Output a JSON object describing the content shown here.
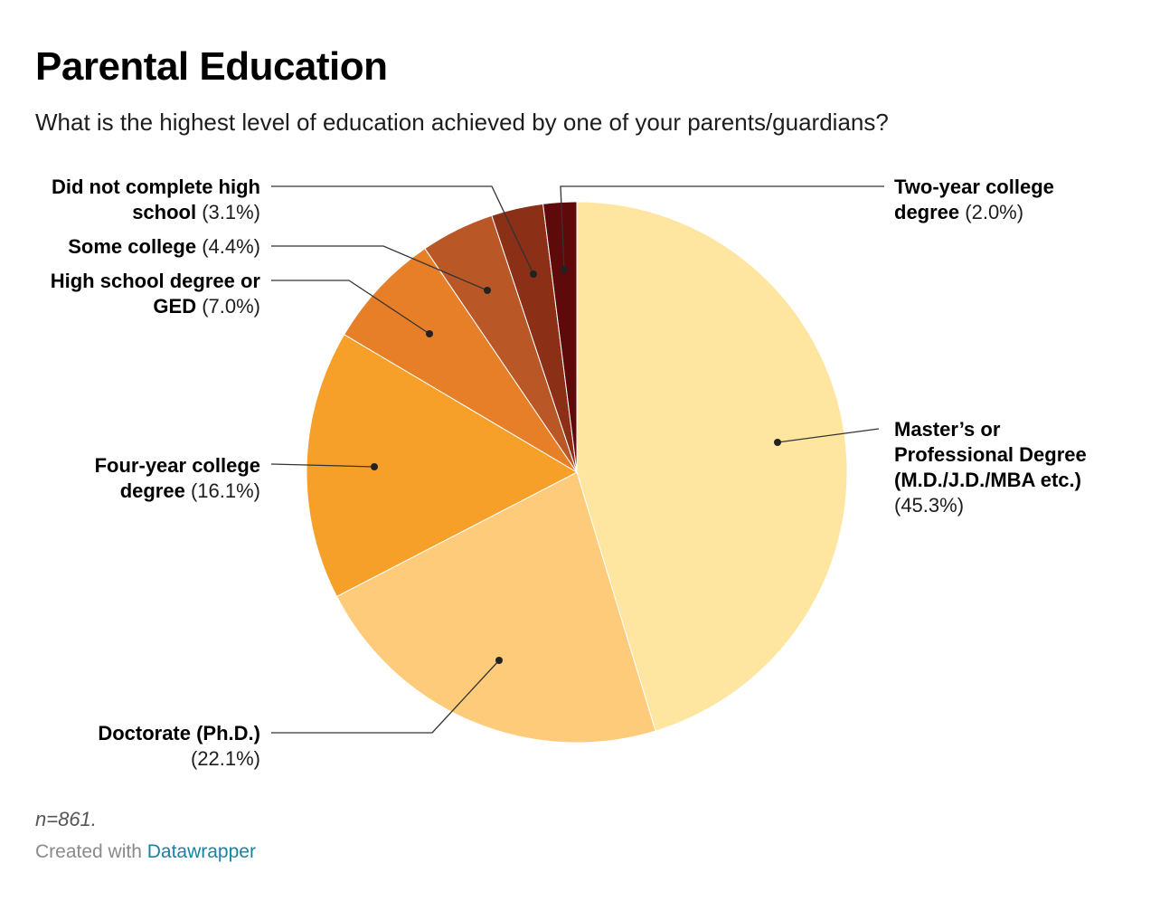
{
  "chart_data": {
    "type": "pie",
    "title": "Parental Education",
    "subtitle": "What is the highest level of education achieved by one of your parents/guardians?",
    "slices": [
      {
        "label": "Master’s or Professional Degree (M.D./J.D./MBA etc.)",
        "value": 45.3,
        "percent_label": "(45.3%)",
        "color": "#fee6a1"
      },
      {
        "label": "Doctorate (Ph.D.)",
        "value": 22.1,
        "percent_label": "(22.1%)",
        "color": "#fdcb7a"
      },
      {
        "label": "Four-year college degree",
        "value": 16.1,
        "percent_label": "(16.1%)",
        "color": "#f6a02a"
      },
      {
        "label": "High school degree or GED",
        "value": 7.0,
        "percent_label": "(7.0%)",
        "color": "#e77f28"
      },
      {
        "label": "Some college",
        "value": 4.4,
        "percent_label": "(4.4%)",
        "color": "#b95726"
      },
      {
        "label": "Did not complete high school",
        "value": 3.1,
        "percent_label": "(3.1%)",
        "color": "#8b2f17"
      },
      {
        "label": "Two-year college degree",
        "value": 2.0,
        "percent_label": "(2.0%)",
        "color": "#5e0a0a"
      }
    ]
  },
  "notes": {
    "footnote": "n=861.",
    "credit_prefix": "Created with ",
    "credit_link": "Datawrapper"
  }
}
